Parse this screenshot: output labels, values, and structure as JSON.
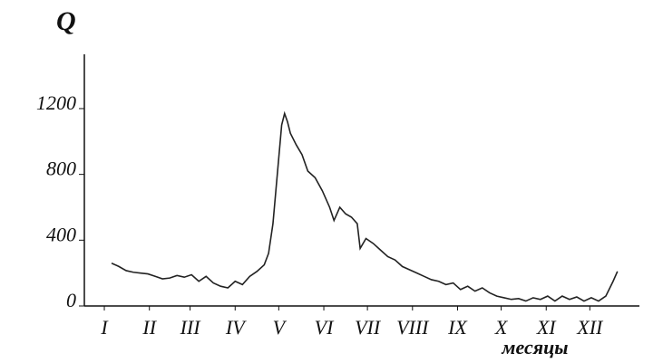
{
  "chart_data": {
    "type": "line",
    "title": "Q",
    "x_label": "месяцы",
    "x": [
      5,
      10,
      15,
      20,
      25,
      30,
      35,
      40,
      45,
      50,
      55,
      60,
      65,
      70,
      75,
      80,
      85,
      90,
      95,
      100,
      105,
      110,
      113,
      116,
      118,
      120,
      122,
      124,
      126,
      128,
      132,
      136,
      140,
      145,
      150,
      155,
      158,
      162,
      166,
      170,
      174,
      176,
      180,
      185,
      190,
      195,
      200,
      205,
      210,
      215,
      220,
      225,
      230,
      235,
      240,
      245,
      250,
      255,
      260,
      265,
      270,
      275,
      280,
      285,
      290,
      295,
      300,
      305,
      310,
      315,
      320,
      325,
      330,
      335,
      340,
      345,
      350,
      353
    ],
    "series": [
      {
        "color": "#222222",
        "values": [
          260,
          240,
          215,
          205,
          200,
          195,
          180,
          165,
          170,
          185,
          175,
          190,
          150,
          180,
          140,
          120,
          110,
          150,
          130,
          180,
          210,
          250,
          320,
          500,
          700,
          900,
          1100,
          1170,
          1120,
          1050,
          980,
          920,
          820,
          780,
          700,
          600,
          520,
          600,
          560,
          540,
          500,
          350,
          410,
          380,
          340,
          300,
          280,
          240,
          220,
          200,
          180,
          160,
          150,
          130,
          140,
          100,
          120,
          90,
          110,
          80,
          60,
          50,
          40,
          45,
          30,
          50,
          40,
          60,
          30,
          60,
          40,
          55,
          30,
          50,
          30,
          60,
          150,
          210
        ]
      }
    ],
    "xlim": [
      -10,
      360
    ],
    "ylim": [
      0,
      1530
    ],
    "xticks": [
      {
        "value": 0,
        "label": "I"
      },
      {
        "value": 31,
        "label": "II"
      },
      {
        "value": 59,
        "label": "III"
      },
      {
        "value": 90,
        "label": "IV"
      },
      {
        "value": 120,
        "label": "V"
      },
      {
        "value": 151,
        "label": "VI"
      },
      {
        "value": 181,
        "label": "VII"
      },
      {
        "value": 212,
        "label": "VIII"
      },
      {
        "value": 243,
        "label": "IX"
      },
      {
        "value": 273,
        "label": "X"
      },
      {
        "value": 304,
        "label": "XI"
      },
      {
        "value": 334,
        "label": "XII"
      }
    ],
    "yticks": [
      0,
      400,
      800,
      1200
    ]
  }
}
